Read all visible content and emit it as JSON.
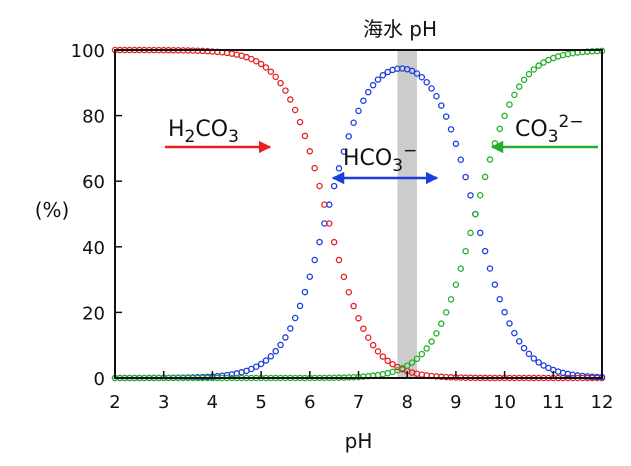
{
  "chart_data": {
    "type": "scatter",
    "title": "海水 pH",
    "xlabel": "pH",
    "ylabel": "(%)",
    "xlim": [
      2,
      12
    ],
    "ylim": [
      0,
      100
    ],
    "xticks": [
      2,
      3,
      4,
      5,
      6,
      7,
      8,
      9,
      10,
      11,
      12
    ],
    "yticks": [
      0,
      20,
      40,
      60,
      80,
      100
    ],
    "grid": false,
    "shaded_band": {
      "from": 7.8,
      "to": 8.2,
      "color": "#cccccc"
    },
    "pKa1": 6.35,
    "pKa2": 9.4,
    "x_step": 0.1,
    "series": [
      {
        "name": "H2CO3",
        "color": "#e82020",
        "formula": {
          "base": "H",
          "sub": "2",
          "rest": "CO",
          "sub2": "3",
          "sup": ""
        }
      },
      {
        "name": "HCO3-",
        "color": "#1a3de0",
        "formula": {
          "base": "HCO",
          "sub": "3",
          "rest": "",
          "sub2": "",
          "sup": "−"
        }
      },
      {
        "name": "CO3 2-",
        "color": "#22b02a",
        "formula": {
          "base": "CO",
          "sub": "3",
          "rest": "",
          "sub2": "",
          "sup": "2−"
        }
      }
    ]
  }
}
